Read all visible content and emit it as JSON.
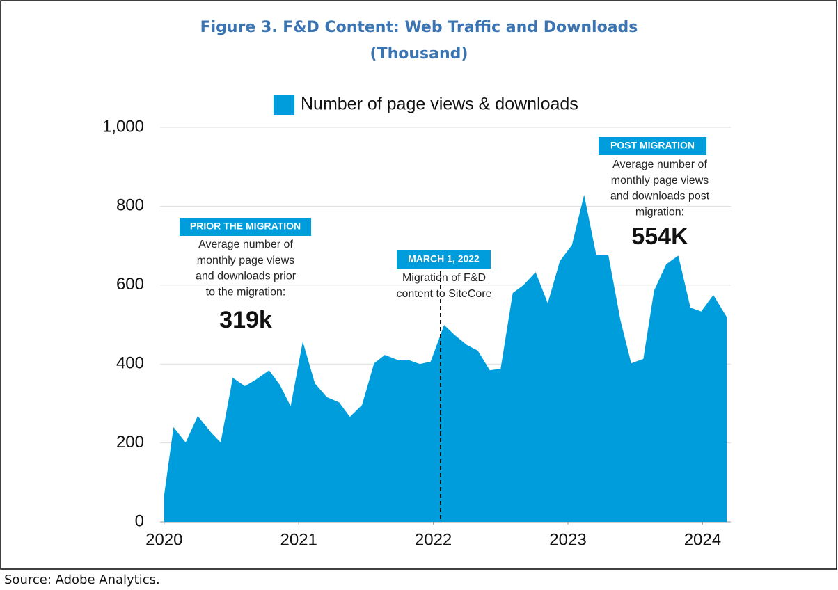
{
  "chart_data": {
    "type": "area",
    "title": "Figure 3. F&D Content: Web Traffic and Downloads",
    "subtitle": "(Thousand)",
    "source": "Source: Adobe Analytics.",
    "series": [
      {
        "name": "Number of page views & downloads",
        "color": "#009ddc",
        "x": [
          2020.0,
          2020.07,
          2020.16,
          2020.25,
          2020.35,
          2020.42,
          2020.51,
          2020.6,
          2020.68,
          2020.78,
          2020.86,
          2020.94,
          2021.03,
          2021.12,
          2021.21,
          2021.3,
          2021.38,
          2021.47,
          2021.56,
          2021.64,
          2021.73,
          2021.81,
          2021.9,
          2021.98,
          2022.08,
          2022.16,
          2022.25,
          2022.33,
          2022.42,
          2022.5,
          2022.59,
          2022.67,
          2022.76,
          2022.85,
          2022.94,
          2023.03,
          2023.12,
          2023.21,
          2023.3,
          2023.39,
          2023.47,
          2023.56,
          2023.64,
          2023.73,
          2023.82,
          2023.91,
          2023.99,
          2024.08,
          2024.18
        ],
        "values": [
          67,
          240,
          201,
          268,
          226,
          201,
          365,
          344,
          360,
          384,
          347,
          293,
          457,
          351,
          316,
          303,
          266,
          296,
          402,
          423,
          411,
          411,
          400,
          406,
          499,
          473,
          448,
          434,
          384,
          388,
          580,
          600,
          633,
          554,
          661,
          702,
          829,
          677,
          677,
          511,
          402,
          413,
          586,
          653,
          675,
          543,
          533,
          575,
          519
        ]
      }
    ],
    "xlim": [
      2019.97,
      2024.21
    ],
    "xticks": [
      2020,
      2021,
      2022,
      2023,
      2024
    ],
    "ylim": [
      0,
      1000
    ],
    "yticks": [
      0,
      200,
      400,
      600,
      800,
      {
        "value": 1000,
        "label": "1,000"
      }
    ],
    "grid": true,
    "legend": "top",
    "annotations": [
      {
        "label": "PRIOR THE MIGRATION",
        "lines": [
          "Average number of",
          "monthly page views",
          "and downloads prior",
          "to the migration:"
        ],
        "value_text": "319k"
      },
      {
        "label": "MARCH 1, 2022",
        "lines": [
          "Migration of F&D",
          "content to SiteCore"
        ]
      },
      {
        "label": "POST MIGRATION",
        "lines": [
          "Average number of",
          "monthly page views",
          "and downloads post",
          "migration:"
        ],
        "value_text": "554K"
      }
    ]
  }
}
